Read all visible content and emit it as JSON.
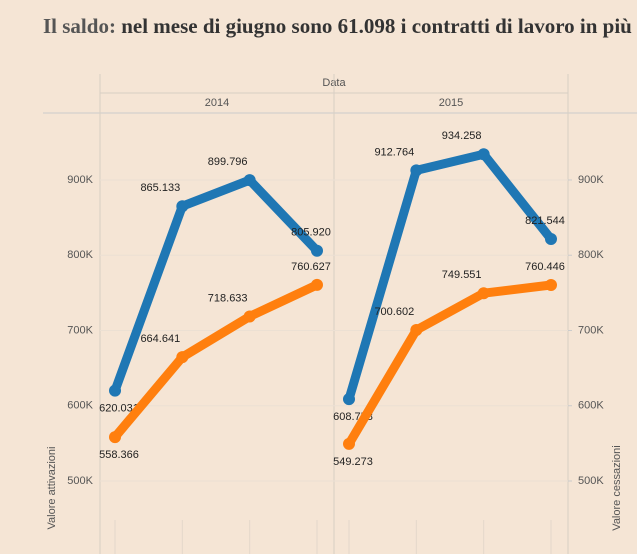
{
  "chart_data": {
    "type": "line",
    "title_lead": "Il saldo:",
    "title": "nel mese di giugno sono 61.098 i contratti di lavoro in più",
    "facet_label": "Data",
    "y_label": "Valore attivazioni",
    "y2_label": "Valore cessazioni",
    "ylim": [
      403000,
      989000
    ],
    "y2lim": [
      403000,
      989000
    ],
    "yticks": [
      {
        "value": 500000,
        "label": "500K"
      },
      {
        "value": 600000,
        "label": "600K"
      },
      {
        "value": 700000,
        "label": "700K"
      },
      {
        "value": 800000,
        "label": "800K"
      },
      {
        "value": 900000,
        "label": "900K"
      }
    ],
    "y2ticks": [
      {
        "value": 500000,
        "label": "500K"
      },
      {
        "value": 600000,
        "label": "600K"
      },
      {
        "value": 700000,
        "label": "700K"
      },
      {
        "value": 800000,
        "label": "800K"
      },
      {
        "value": 900000,
        "label": "900K"
      }
    ],
    "grid": true,
    "panels": [
      {
        "label": "2014",
        "categories": [
          null,
          null,
          null,
          null
        ],
        "series": [
          {
            "color": "#1f77b4",
            "values": [
              620031,
              865133,
              899796,
              805920
            ],
            "value_labels": [
              "620.031",
              "865.133",
              "899.796",
              "805.920"
            ]
          },
          {
            "color": "#ff7f0e",
            "axis": "y2",
            "values": [
              558366,
              664641,
              718633,
              760627
            ],
            "value_labels": [
              "558.366",
              "664.641",
              "718.633",
              "760.627"
            ]
          }
        ]
      },
      {
        "label": "2015",
        "categories": [
          null,
          null,
          null,
          null
        ],
        "series": [
          {
            "color": "#1f77b4",
            "values": [
              608758,
              912764,
              934258,
              821544
            ],
            "value_labels": [
              "608.758",
              "912.764",
              "934.258",
              "821.544"
            ]
          },
          {
            "color": "#ff7f0e",
            "axis": "y2",
            "values": [
              549273,
              700602,
              749551,
              760446
            ],
            "value_labels": [
              "549.273",
              "700.602",
              "749.551",
              "760.446"
            ]
          }
        ]
      }
    ]
  }
}
